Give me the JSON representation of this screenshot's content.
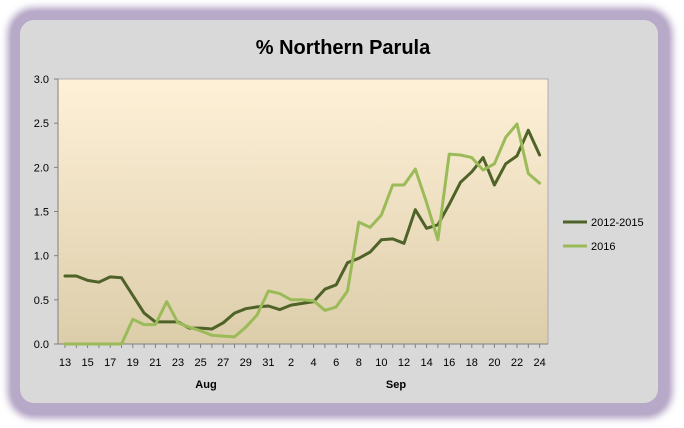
{
  "chart_data": {
    "type": "line",
    "title": "% Northern Parula",
    "xlabel": "",
    "ylabel": "",
    "ylim": [
      0,
      3.0
    ],
    "y_ticks": [
      "0.0",
      "0.5",
      "1.0",
      "1.5",
      "2.0",
      "2.5",
      "3.0"
    ],
    "x_tick_labels": [
      "13",
      "15",
      "17",
      "19",
      "21",
      "23",
      "25",
      "27",
      "29",
      "31",
      "2",
      "4",
      "6",
      "8",
      "10",
      "12",
      "14",
      "16",
      "18",
      "20",
      "22",
      "24"
    ],
    "month_labels": [
      "Aug",
      "Sep"
    ],
    "x": [
      "Aug 13",
      "Aug 14",
      "Aug 15",
      "Aug 16",
      "Aug 17",
      "Aug 18",
      "Aug 19",
      "Aug 20",
      "Aug 21",
      "Aug 22",
      "Aug 23",
      "Aug 24",
      "Aug 25",
      "Aug 26",
      "Aug 27",
      "Aug 28",
      "Aug 29",
      "Aug 30",
      "Aug 31",
      "Sep 1",
      "Sep 2",
      "Sep 3",
      "Sep 4",
      "Sep 5",
      "Sep 6",
      "Sep 7",
      "Sep 8",
      "Sep 9",
      "Sep 10",
      "Sep 11",
      "Sep 12",
      "Sep 13",
      "Sep 14",
      "Sep 15",
      "Sep 16",
      "Sep 17",
      "Sep 18",
      "Sep 19",
      "Sep 20",
      "Sep 21",
      "Sep 22",
      "Sep 23",
      "Sep 24"
    ],
    "legend_position": "right",
    "grid": false,
    "series": [
      {
        "name": "2012-2015",
        "color": "#4f6228",
        "values": [
          0.77,
          0.77,
          0.72,
          0.7,
          0.76,
          0.75,
          0.55,
          0.35,
          0.25,
          0.25,
          0.25,
          0.18,
          0.18,
          0.17,
          0.24,
          0.35,
          0.4,
          0.42,
          0.43,
          0.39,
          0.44,
          0.46,
          0.48,
          0.62,
          0.67,
          0.92,
          0.97,
          1.04,
          1.18,
          1.19,
          1.14,
          1.52,
          1.31,
          1.35,
          1.58,
          1.83,
          1.95,
          2.11,
          1.8,
          2.04,
          2.13,
          2.42,
          2.14
        ]
      },
      {
        "name": "2016",
        "color": "#9bbb59",
        "values": [
          0,
          0,
          0,
          0,
          0,
          0,
          0.28,
          0.22,
          0.22,
          0.48,
          0.24,
          0.19,
          0.15,
          0.1,
          0.09,
          0.08,
          0.19,
          0.33,
          0.6,
          0.57,
          0.5,
          0.5,
          0.49,
          0.38,
          0.42,
          0.6,
          1.38,
          1.32,
          1.46,
          1.8,
          1.8,
          1.98,
          1.6,
          1.18,
          2.15,
          2.14,
          2.11,
          1.97,
          2.04,
          2.34,
          2.49,
          1.93,
          1.82
        ]
      }
    ]
  }
}
